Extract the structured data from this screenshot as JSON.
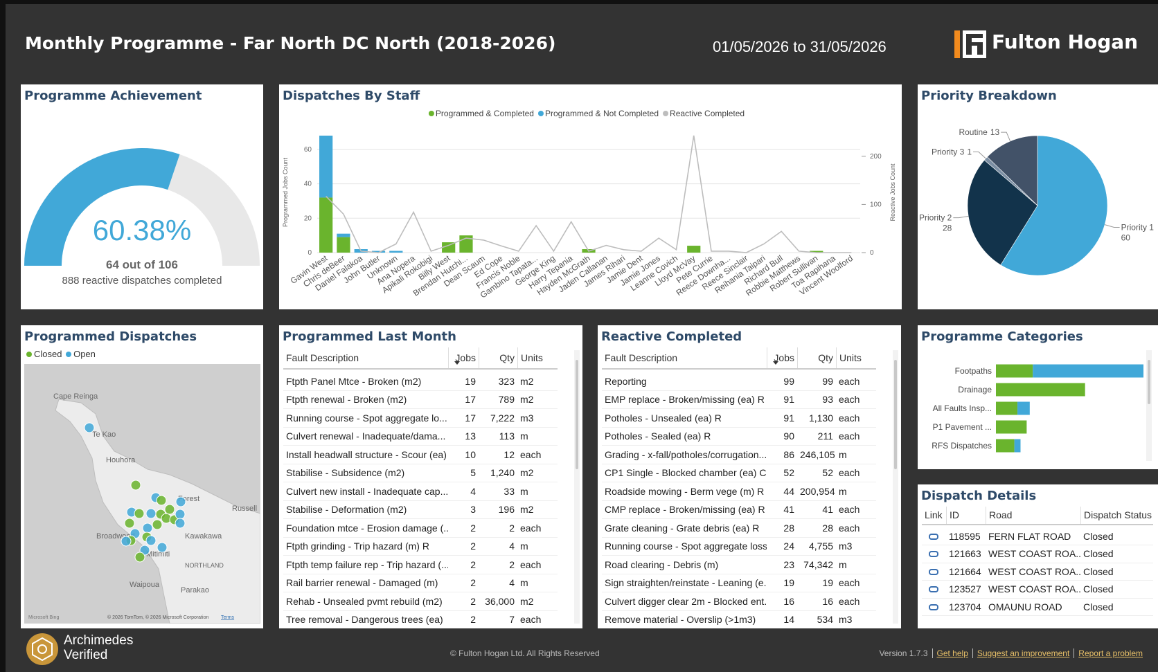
{
  "header": {
    "title": "Monthly Programme - Far North DC North (2018-2026)",
    "date_range": "01/05/2026 to 31/05/2026",
    "logo_text": "Fulton Hogan"
  },
  "chart_data": [
    {
      "type": "gauge",
      "title": "Programme Achievement",
      "value": 60.38,
      "value_label": "60.38%",
      "ylim": [
        0,
        100
      ],
      "color": "#41a8d8",
      "track_color": "#e8e8e8",
      "subtitle": "64 out of 106",
      "note": "888 reactive dispatches completed"
    },
    {
      "type": "combo",
      "title": "Dispatches By Staff",
      "categories": [
        "Gavin West",
        "Chris deBeer",
        "Daniel Falakoa",
        "John Butler",
        "Unknown",
        "Ana Nopera",
        "Apikali Rokobigi",
        "Billy West",
        "Brendan Hutchi...",
        "Dean Scaum",
        "Ed Cope",
        "Francis Noble",
        "Gambino Tapata...",
        "George King",
        "Harry Tepania",
        "Hayden McGrath",
        "Jaden Callanan",
        "James Rihari",
        "Jamie Dent",
        "Jamie Jones",
        "Leanne Covich",
        "Lloyd McVay",
        "Pete Currie",
        "Reece Downha...",
        "Reece Sinclair",
        "Reihania Taipari",
        "Richard Bull",
        "Robbie Matthews",
        "Robert Sullivan",
        "Toa Rapihana",
        "Vincent Woolford"
      ],
      "series": [
        {
          "name": "Programmed & Completed",
          "color": "#6ab42d",
          "values": [
            32,
            9,
            0,
            0,
            0,
            0,
            0,
            6,
            10,
            0,
            0,
            0,
            0,
            0,
            0,
            2,
            0,
            0,
            0,
            0,
            0,
            4,
            0,
            0,
            0,
            0,
            0,
            0,
            1,
            0,
            0
          ]
        },
        {
          "name": "Programmed & Not Completed",
          "color": "#41a8d8",
          "values": [
            36,
            2,
            2,
            1,
            1,
            0,
            0,
            0,
            0,
            0,
            0,
            0,
            0,
            0,
            0,
            0,
            0,
            0,
            0,
            0,
            0,
            0,
            0,
            0,
            0,
            0,
            0,
            0,
            0,
            0,
            0
          ]
        },
        {
          "name": "Reactive Completed",
          "color": "#bdbdbd",
          "axis": "y2",
          "values": [
            117,
            80,
            3,
            0,
            18,
            84,
            3,
            15,
            30,
            26,
            14,
            3,
            56,
            3,
            64,
            3,
            15,
            6,
            3,
            30,
            6,
            243,
            3,
            3,
            0,
            18,
            44,
            3,
            0,
            0,
            0
          ]
        }
      ],
      "ylabel": "Programmed Jobs Count",
      "y2label": "Reactive Jobs Count",
      "ylim": [
        0,
        70
      ],
      "yticks": [
        0,
        20,
        40,
        60
      ],
      "y2lim": [
        0,
        250
      ],
      "y2ticks": [
        0,
        100,
        200
      ],
      "grid": true,
      "stacked": true
    },
    {
      "type": "pie",
      "title": "Priority Breakdown",
      "categories": [
        "Priority 1",
        "Priority 2",
        "Priority 3",
        "Routine"
      ],
      "values": [
        60,
        28,
        1,
        13
      ],
      "colors": [
        "#41a8d8",
        "#12334b",
        "#7b8ea3",
        "#425268"
      ]
    },
    {
      "type": "hbar",
      "title": "Programme Categories",
      "categories": [
        "Footpaths",
        "Drainage",
        "All Faults Insp...",
        "P1 Pavement ...",
        "RFS Dispatches"
      ],
      "series": [
        {
          "color": "#6ab42d",
          "values": [
            12,
            29,
            7,
            10,
            6
          ]
        },
        {
          "color": "#41a8d8",
          "values": [
            36,
            0,
            4,
            0,
            2
          ]
        }
      ],
      "xlim": [
        0,
        48
      ],
      "stacked": true
    }
  ],
  "map": {
    "title": "Programmed Dispatches",
    "legend": [
      {
        "name": "Closed",
        "color": "#6ab42d"
      },
      {
        "name": "Open",
        "color": "#41a8d8"
      }
    ],
    "labels": [
      "Cape Reinga",
      "Te Kao",
      "Houhora",
      "Broadwood",
      "Forest",
      "Russell",
      "Kawakawa",
      "Mitimiti",
      "NORTHLAND",
      "Waipoua",
      "Parakao"
    ],
    "attribution": "© 2026 TomTom, © 2026 Microsoft Corporation",
    "terms": "Terms",
    "provider": "Microsoft Bing"
  },
  "programmed_last_month": {
    "title": "Programmed Last Month",
    "columns": [
      "Fault Description",
      "Jobs",
      "Qty",
      "Units"
    ],
    "rows": [
      [
        "Ftpth Panel Mtce - Broken (m2)",
        "19",
        "323",
        "m2"
      ],
      [
        "Ftpth renewal - Broken (m2)",
        "17",
        "789",
        "m2"
      ],
      [
        "Running course - Spot aggregate lo...",
        "17",
        "7,222",
        "m3"
      ],
      [
        "Culvert renewal - Inadequate/dama...",
        "13",
        "113",
        "m"
      ],
      [
        "Install headwall structure - Scour (ea)",
        "10",
        "12",
        "each"
      ],
      [
        "Stabilise - Subsidence (m2)",
        "5",
        "1,240",
        "m2"
      ],
      [
        "Culvert new install - Inadequate cap...",
        "4",
        "33",
        "m"
      ],
      [
        "Stabilise - Deformation (m2)",
        "3",
        "196",
        "m2"
      ],
      [
        "Foundation mtce - Erosion damage (...",
        "2",
        "2",
        "each"
      ],
      [
        "Ftpth grinding - Trip hazard (m) R",
        "2",
        "4",
        "m"
      ],
      [
        "Ftpth temp failure rep - Trip hazard (...",
        "2",
        "2",
        "each"
      ],
      [
        "Rail barrier renewal - Damaged (m)",
        "2",
        "4",
        "m"
      ],
      [
        "Rehab - Unsealed pvmt rebuild (m2)",
        "2",
        "36,000",
        "m2"
      ],
      [
        "Tree removal - Dangerous trees (ea)",
        "2",
        "7",
        "each"
      ]
    ]
  },
  "reactive_completed": {
    "title": "Reactive Completed",
    "columns": [
      "Fault Description",
      "Jobs",
      "Qty",
      "Units"
    ],
    "rows": [
      [
        "Reporting",
        "99",
        "99",
        "each"
      ],
      [
        "EMP replace - Broken/missing (ea) R",
        "91",
        "93",
        "each"
      ],
      [
        "Potholes - Unsealed (ea) R",
        "91",
        "1,130",
        "each"
      ],
      [
        "Potholes - Sealed (ea) R",
        "90",
        "211",
        "each"
      ],
      [
        "Grading - x-fall/potholes/corrugation...",
        "86",
        "246,105",
        "m"
      ],
      [
        "CP1 Single - Blocked chamber (ea) C",
        "52",
        "52",
        "each"
      ],
      [
        "Roadside mowing - Berm vege (m) R",
        "44",
        "200,954",
        "m"
      ],
      [
        "CMP replace - Broken/missing (ea) R",
        "41",
        "41",
        "each"
      ],
      [
        "Grate cleaning - Grate debris (ea) R",
        "28",
        "28",
        "each"
      ],
      [
        "Running course - Spot aggregate loss...",
        "24",
        "4,755",
        "m3"
      ],
      [
        "Road clearing - Debris (m)",
        "23",
        "74,342",
        "m"
      ],
      [
        "Sign straighten/reinstate - Leaning (e...",
        "19",
        "19",
        "each"
      ],
      [
        "Culvert digger clear 2m - Blocked ent...",
        "16",
        "16",
        "each"
      ],
      [
        "Remove material - Overslip (>1m3)",
        "14",
        "534",
        "m3"
      ]
    ]
  },
  "dispatch_details": {
    "title": "Dispatch Details",
    "columns": [
      "Link",
      "ID",
      "Road",
      "Dispatch Status"
    ],
    "rows": [
      [
        "118595",
        "FERN FLAT ROAD",
        "Closed"
      ],
      [
        "121663",
        "WEST COAST ROA...",
        "Closed"
      ],
      [
        "121664",
        "WEST COAST ROA...",
        "Closed"
      ],
      [
        "123527",
        "WEST COAST ROA...",
        "Closed"
      ],
      [
        "123704",
        "OMAUNU ROAD",
        "Closed"
      ]
    ]
  },
  "footer": {
    "badge": [
      "Archimedes",
      "Verified"
    ],
    "copyright": "© Fulton Hogan Ltd. All Rights Reserved",
    "version": "Version 1.7.3",
    "links": [
      "Get help",
      "Suggest an improvement",
      "Report a problem"
    ]
  }
}
